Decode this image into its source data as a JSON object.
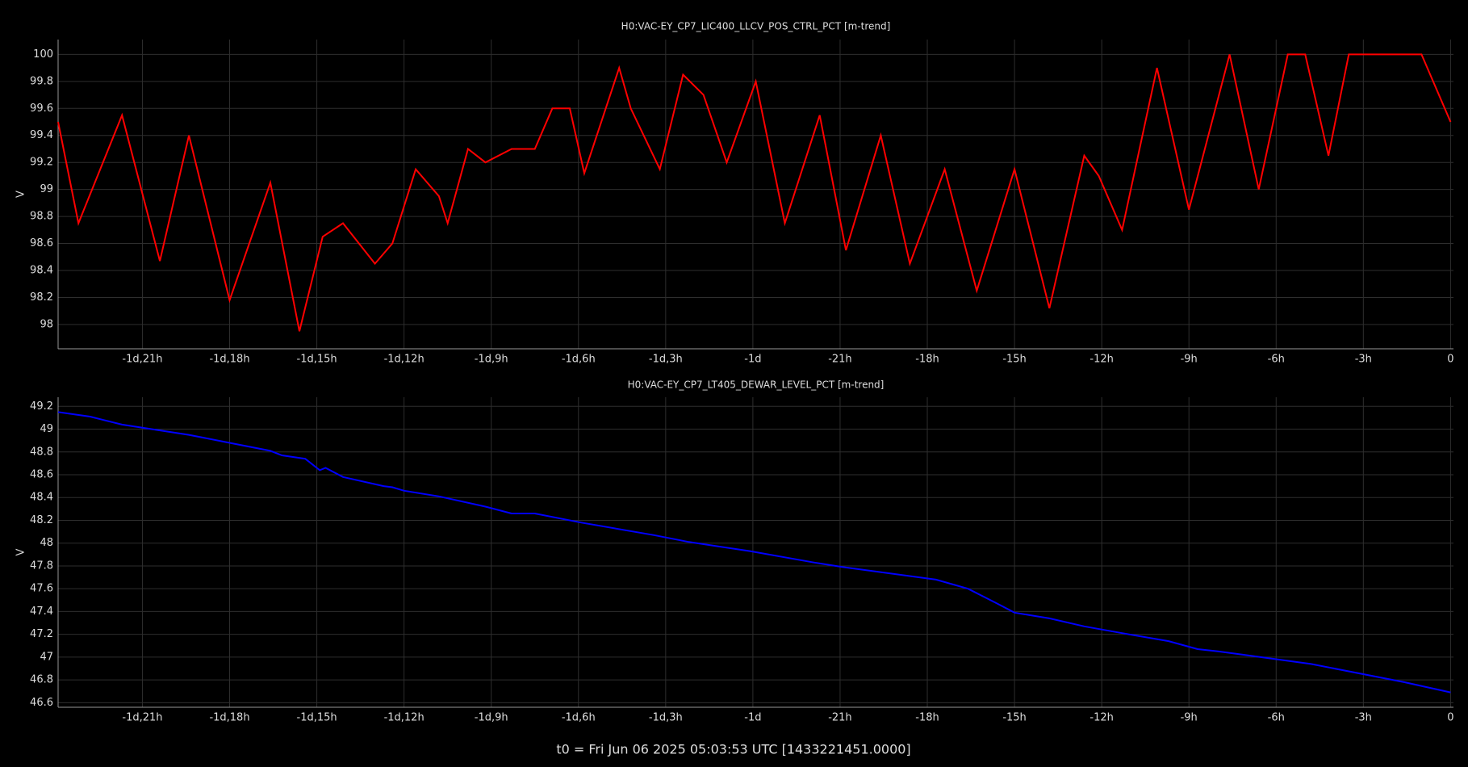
{
  "chart_data": [
    {
      "type": "line",
      "title": "H0:VAC-EY_CP7_LIC400_LLCV_POS_CTRL_PCT [m-trend]",
      "y_label": "V",
      "grid": true,
      "xlim": [
        -47.9,
        0.1
      ],
      "xticks": [
        {
          "value": -45,
          "label": "-1d,21h"
        },
        {
          "value": -42,
          "label": "-1d,18h"
        },
        {
          "value": -39,
          "label": "-1d,15h"
        },
        {
          "value": -36,
          "label": "-1d,12h"
        },
        {
          "value": -33,
          "label": "-1d,9h"
        },
        {
          "value": -30,
          "label": "-1d,6h"
        },
        {
          "value": -27,
          "label": "-1d,3h"
        },
        {
          "value": -24,
          "label": "-1d"
        },
        {
          "value": -21,
          "label": "-21h"
        },
        {
          "value": -18,
          "label": "-18h"
        },
        {
          "value": -15,
          "label": "-15h"
        },
        {
          "value": -12,
          "label": "-12h"
        },
        {
          "value": -9,
          "label": "-9h"
        },
        {
          "value": -6,
          "label": "-6h"
        },
        {
          "value": -3,
          "label": "-3h"
        },
        0
      ],
      "ylim": [
        97.82,
        100.11
      ],
      "yticks": [
        98,
        98.2,
        98.4,
        98.6,
        98.8,
        99,
        99.2,
        99.4,
        99.6,
        99.8,
        100
      ],
      "x": [
        -47.9,
        -47.2,
        -45.7,
        -44.4,
        -43.4,
        -42.0,
        -40.6,
        -39.6,
        -38.8,
        -38.1,
        -37.0,
        -36.4,
        -35.6,
        -34.8,
        -34.5,
        -33.8,
        -33.2,
        -32.3,
        -31.5,
        -30.9,
        -30.3,
        -29.8,
        -28.6,
        -28.2,
        -27.2,
        -26.4,
        -25.7,
        -24.9,
        -23.9,
        -22.9,
        -21.7,
        -20.8,
        -19.6,
        -18.6,
        -17.4,
        -16.3,
        -15.0,
        -13.8,
        -12.6,
        -12.1,
        -11.3,
        -10.1,
        -9.0,
        -7.6,
        -6.6,
        -5.6,
        -5.0,
        -4.2,
        -3.5,
        -1.0,
        0
      ],
      "series": [
        {
          "color": "#ff0000",
          "values": [
            99.5,
            98.75,
            99.55,
            98.47,
            99.4,
            98.18,
            99.05,
            97.95,
            98.65,
            98.75,
            98.45,
            98.6,
            99.15,
            98.95,
            98.75,
            99.3,
            99.2,
            99.3,
            99.3,
            99.6,
            99.6,
            99.12,
            99.9,
            99.6,
            99.15,
            99.85,
            99.7,
            99.2,
            99.8,
            98.75,
            99.55,
            98.55,
            99.4,
            98.45,
            99.15,
            98.25,
            99.15,
            98.12,
            99.25,
            99.1,
            98.7,
            99.9,
            98.85,
            100,
            99,
            100,
            100,
            99.25,
            100,
            100,
            99.5
          ]
        }
      ]
    },
    {
      "type": "line",
      "title": "H0:VAC-EY_CP7_LT405_DEWAR_LEVEL_PCT [m-trend]",
      "y_label": "V",
      "grid": true,
      "xlim": [
        -47.9,
        0.1
      ],
      "xticks": [
        {
          "value": -45,
          "label": "-1d,21h"
        },
        {
          "value": -42,
          "label": "-1d,18h"
        },
        {
          "value": -39,
          "label": "-1d,15h"
        },
        {
          "value": -36,
          "label": "-1d,12h"
        },
        {
          "value": -33,
          "label": "-1d,9h"
        },
        {
          "value": -30,
          "label": "-1d,6h"
        },
        {
          "value": -27,
          "label": "-1d,3h"
        },
        {
          "value": -24,
          "label": "-1d"
        },
        {
          "value": -21,
          "label": "-21h"
        },
        {
          "value": -18,
          "label": "-18h"
        },
        {
          "value": -15,
          "label": "-15h"
        },
        {
          "value": -12,
          "label": "-12h"
        },
        {
          "value": -9,
          "label": "-9h"
        },
        {
          "value": -6,
          "label": "-6h"
        },
        {
          "value": -3,
          "label": "-3h"
        },
        0
      ],
      "ylim": [
        46.56,
        49.28
      ],
      "yticks": [
        46.6,
        46.8,
        47,
        47.2,
        47.4,
        47.6,
        47.8,
        48,
        48.2,
        48.4,
        48.6,
        48.8,
        49,
        49.2
      ],
      "x": [
        -47.9,
        -46.8,
        -45.7,
        -43.4,
        -42.0,
        -40.6,
        -40.2,
        -39.4,
        -38.9,
        -38.7,
        -38.1,
        -36.7,
        -36.4,
        -36.0,
        -34.8,
        -33.2,
        -32.3,
        -31.5,
        -29.9,
        -27.4,
        -26.2,
        -24.1,
        -21.9,
        -20.9,
        -17.7,
        -16.6,
        -15.6,
        -15.0,
        -13.8,
        -12.6,
        -11.3,
        -9.7,
        -8.7,
        -8.0,
        -7.4,
        -4.8,
        -1.6,
        0
      ],
      "series": [
        {
          "color": "#0000ff",
          "values": [
            49.15,
            49.11,
            49.04,
            48.95,
            48.88,
            48.81,
            48.77,
            48.74,
            48.64,
            48.66,
            48.58,
            48.5,
            48.49,
            48.46,
            48.41,
            48.32,
            48.26,
            48.26,
            48.18,
            48.07,
            48.01,
            47.93,
            47.83,
            47.79,
            47.68,
            47.6,
            47.47,
            47.39,
            47.34,
            47.27,
            47.21,
            47.14,
            47.07,
            47.05,
            47.03,
            46.94,
            46.78,
            46.69
          ]
        }
      ]
    }
  ],
  "footer": "t0 = Fri Jun 06 2025 05:03:53 UTC [1433221451.0000]"
}
